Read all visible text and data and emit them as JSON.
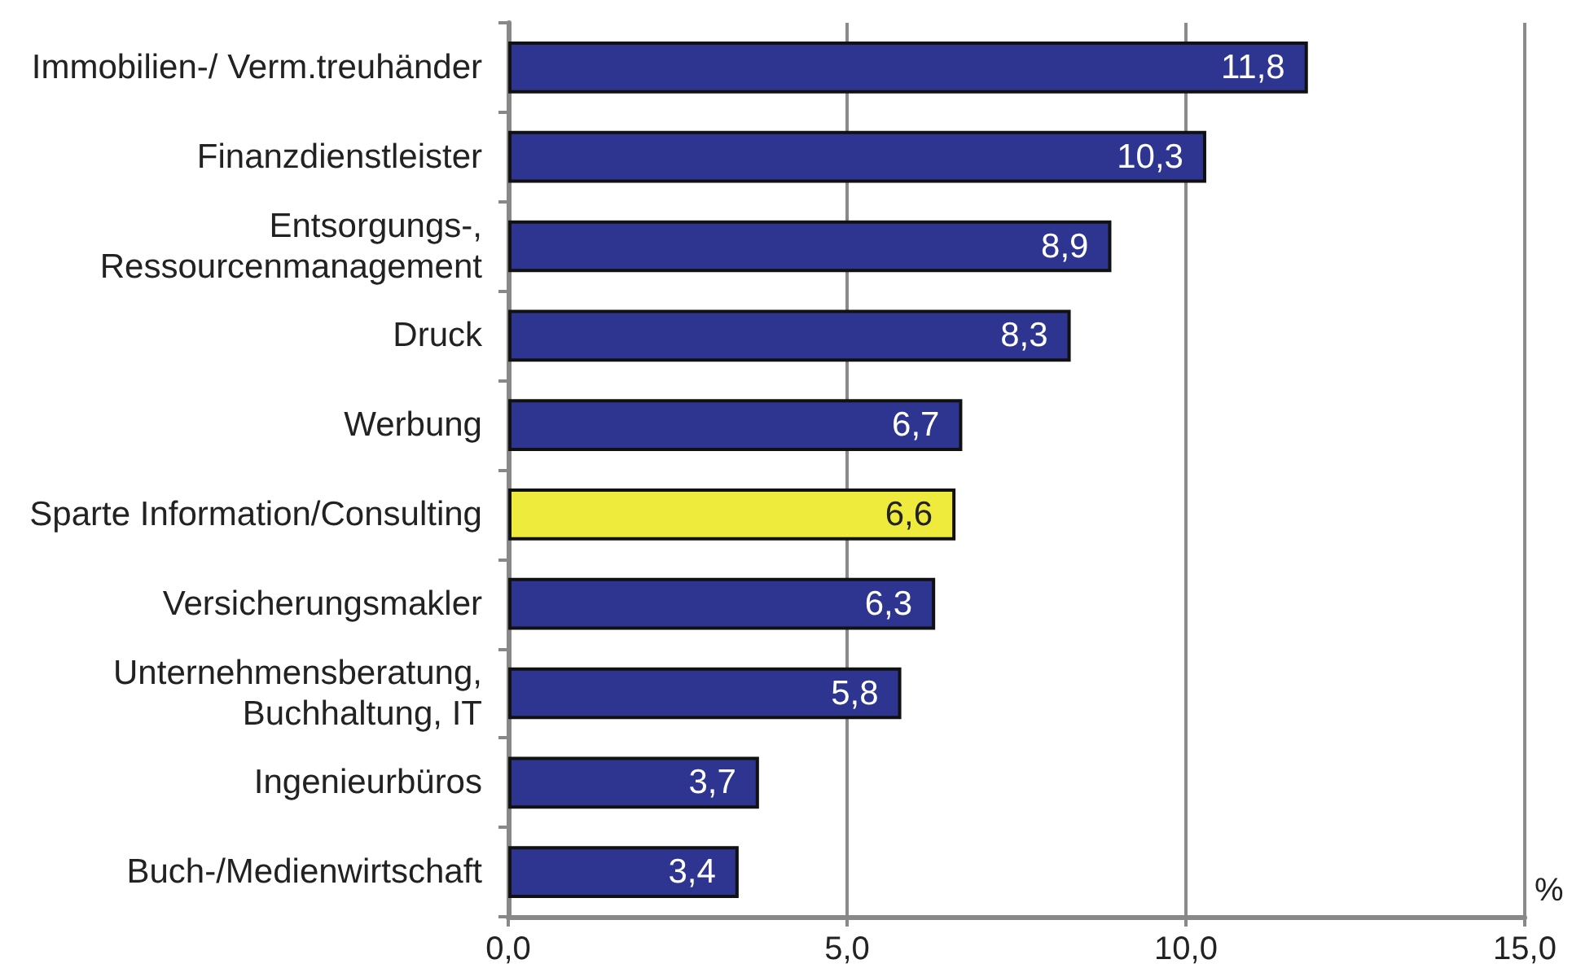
{
  "chart_data": {
    "type": "bar",
    "orientation": "horizontal",
    "xlabel": "%",
    "categories": [
      "Immobilien-/ Verm.treuhänder",
      "Finanzdienstleister",
      "Entsorgungs-,\nRessourcenmanagement",
      "Druck",
      "Werbung",
      "Sparte Information/Consulting",
      "Versicherungsmakler",
      "Unternehmensberatung,\nBuchhaltung, IT",
      "Ingenieurbüros",
      "Buch-/Medienwirtschaft"
    ],
    "values": [
      11.8,
      10.3,
      8.9,
      8.3,
      6.7,
      6.6,
      6.3,
      5.8,
      3.7,
      3.4
    ],
    "colors": [
      "#2e3590",
      "#2e3590",
      "#2e3590",
      "#2e3590",
      "#2e3590",
      "#efeb3c",
      "#2e3590",
      "#2e3590",
      "#2e3590",
      "#2e3590"
    ],
    "value_labels": [
      "11,8",
      "10,3",
      "8,9",
      "8,3",
      "6,7",
      "6,6",
      "6,3",
      "5,8",
      "3,7",
      "3,4"
    ],
    "xlim": [
      0,
      15
    ],
    "xticks": [
      {
        "value": 0,
        "label": "0,0"
      },
      {
        "value": 5,
        "label": "5,0"
      },
      {
        "value": 10,
        "label": "10,0"
      },
      {
        "value": 15,
        "label": "15,0"
      }
    ],
    "grid": "x"
  }
}
